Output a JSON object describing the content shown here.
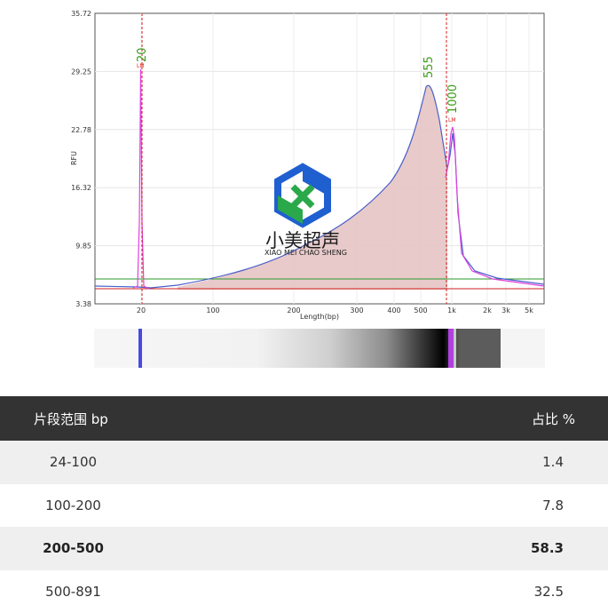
{
  "chart_data": {
    "type": "line",
    "ylabel": "RFU",
    "xlabel": "Length(bp)",
    "y_ticks": [
      "35.72",
      "29.25",
      "22.78",
      "16.32",
      "9.85",
      "3.38"
    ],
    "x_ticks": [
      "20",
      "100",
      "200",
      "300",
      "400",
      "500",
      "1k",
      "2k",
      "3k",
      "5k"
    ],
    "ylim": [
      3.38,
      35.72
    ],
    "grid": true,
    "peaks": [
      {
        "label": "20",
        "marker": "LM",
        "x": 20,
        "y": 29.8
      },
      {
        "label": "555",
        "x": 555,
        "y": 27.9
      },
      {
        "label": "1000",
        "marker": "LM",
        "x": 1000,
        "y": 22.8
      }
    ]
  },
  "watermark": {
    "name": "小美超声",
    "pinyin": "XIAO MEI CHAO SHENG"
  },
  "table": {
    "headers": [
      "片段范围 bp",
      "占比 %"
    ],
    "rows": [
      {
        "range": "24-100",
        "pct": "1.4"
      },
      {
        "range": "100-200",
        "pct": "7.8"
      },
      {
        "range": "200-500",
        "pct": "58.3"
      },
      {
        "range": "500-891",
        "pct": "32.5"
      }
    ]
  },
  "colors": {
    "trace": "#4a5fc8",
    "marker_trace": "#e040e0",
    "fill": "#e6c4c4",
    "baseline_green": "#2a9a2a",
    "baseline_red": "#d02020",
    "header_bg": "#333333"
  }
}
